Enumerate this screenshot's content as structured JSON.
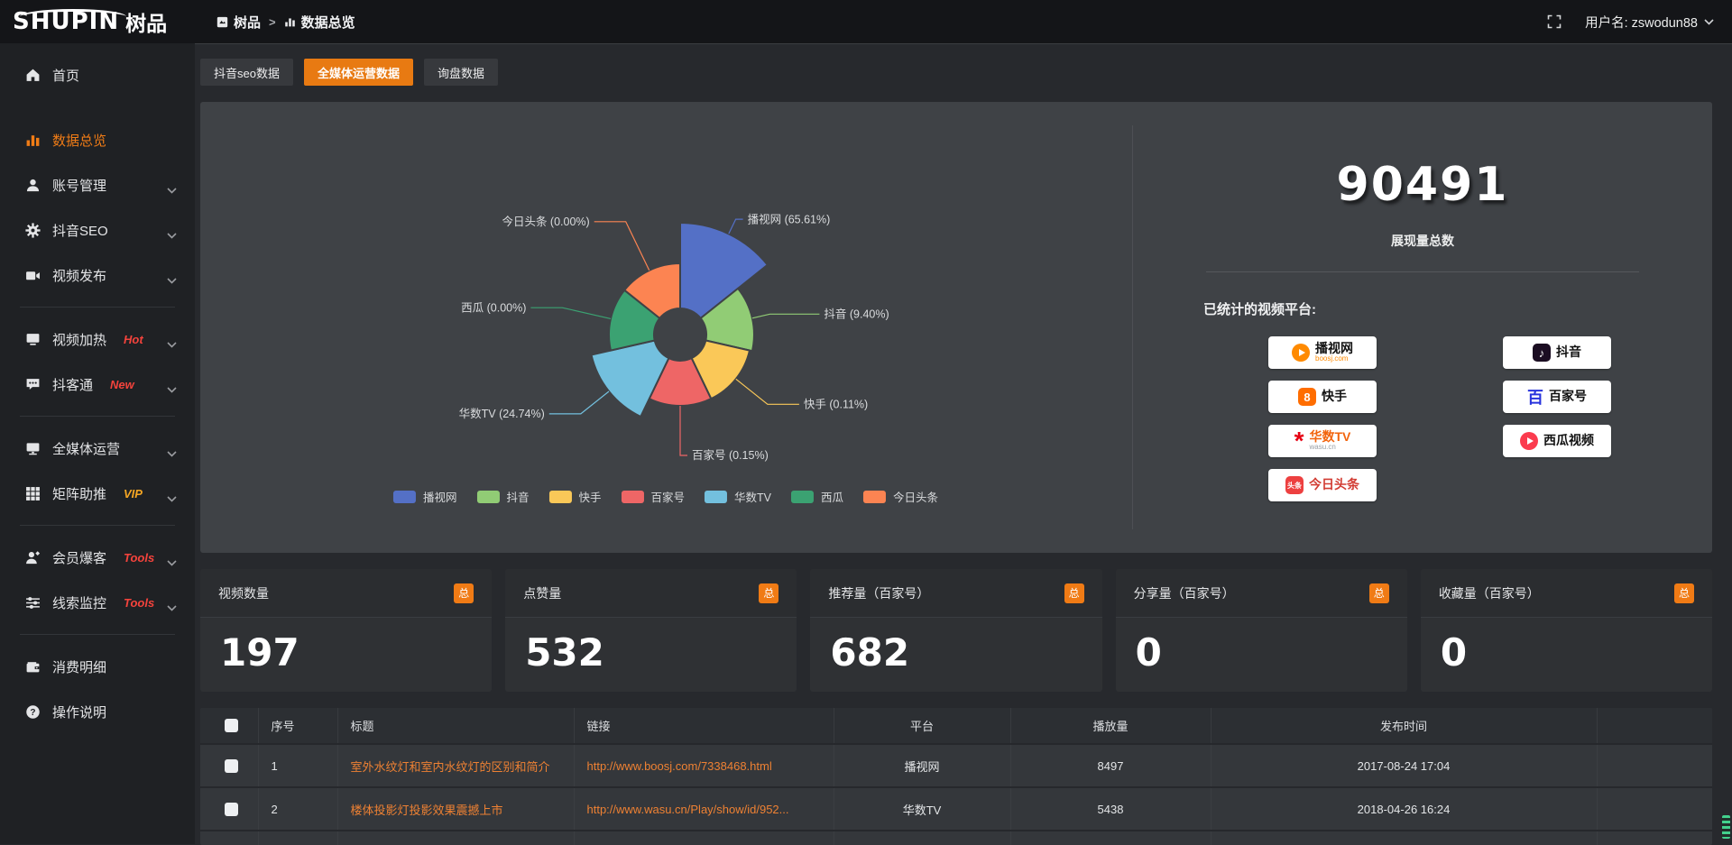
{
  "header": {
    "brand_en": "SHUPIN",
    "brand_cn": "树品",
    "breadcrumb": [
      {
        "label": "树品"
      },
      {
        "label": "数据总览"
      }
    ],
    "breadcrumb_separator": ">",
    "username": "用户名: zswodun88"
  },
  "sidebar": {
    "items": [
      {
        "key": "home",
        "icon": "home",
        "label": "首页",
        "gap_after": true
      },
      {
        "key": "data-overview",
        "icon": "bars",
        "label": "数据总览",
        "active": true
      },
      {
        "key": "account-manage",
        "icon": "user",
        "label": "账号管理",
        "chevron": true
      },
      {
        "key": "douyin-seo",
        "icon": "gear",
        "label": "抖音SEO",
        "chevron": true
      },
      {
        "key": "video-publish",
        "icon": "video",
        "label": "视频发布",
        "chevron": true,
        "divider_after": true
      },
      {
        "key": "video-heat",
        "icon": "screen",
        "label": "视频加热",
        "badge": "Hot",
        "badge_color": "#f4433c",
        "chevron": true
      },
      {
        "key": "douketong",
        "icon": "chat",
        "label": "抖客通",
        "badge": "New",
        "badge_color": "#f4433c",
        "chevron": true,
        "divider_after": true
      },
      {
        "key": "all-media",
        "icon": "monitor",
        "label": "全媒体运营",
        "chevron": true
      },
      {
        "key": "matrix-boost",
        "icon": "grid",
        "label": "矩阵助推",
        "badge": "VIP",
        "badge_color": "#f5a623",
        "chevron": true,
        "divider_after": true
      },
      {
        "key": "member-baoke",
        "icon": "user-star",
        "label": "会员爆客",
        "badge": "Tools",
        "badge_color": "#f4433c",
        "chevron": true
      },
      {
        "key": "clue-monitor",
        "icon": "sliders",
        "label": "线索监控",
        "badge": "Tools",
        "badge_color": "#f4433c",
        "chevron": true,
        "divider_after": true
      },
      {
        "key": "consume-detail",
        "icon": "wallet",
        "label": "消费明细"
      },
      {
        "key": "help",
        "icon": "question",
        "label": "操作说明"
      }
    ]
  },
  "tabs": [
    {
      "key": "douyin-seo-data",
      "label": "抖音seo数据"
    },
    {
      "key": "all-media-data",
      "label": "全媒体运营数据",
      "active": true
    },
    {
      "key": "inquiry-data",
      "label": "询盘数据"
    }
  ],
  "chart_data": {
    "type": "pie",
    "variant": "nightingale-rose",
    "title": "",
    "items": [
      {
        "name": "播视网",
        "pct": 65.61,
        "color": "#5470c6"
      },
      {
        "name": "抖音",
        "pct": 9.4,
        "color": "#91cc75"
      },
      {
        "name": "快手",
        "pct": 0.11,
        "color": "#fac858"
      },
      {
        "name": "百家号",
        "pct": 0.15,
        "color": "#ee6666"
      },
      {
        "name": "华数TV",
        "pct": 24.74,
        "color": "#73c0de"
      },
      {
        "name": "西瓜",
        "pct": 0.0,
        "color": "#3ba272"
      },
      {
        "name": "今日头条",
        "pct": 0.0,
        "color": "#fc8452"
      }
    ],
    "label_format": "{name} ({pct}%)",
    "legend": [
      "播视网",
      "抖音",
      "快手",
      "百家号",
      "华数TV",
      "西瓜",
      "今日头条"
    ],
    "legend_position": "bottom",
    "layout": {
      "inner_radius": 29,
      "outer_radius": [
        124,
        82,
        79,
        79,
        101,
        79,
        79
      ],
      "start_angle_deg": 90,
      "clockwise": true,
      "grid": false
    }
  },
  "summary": {
    "total": "90491",
    "total_caption": "展现量总数",
    "platforms_label": "已统计的视频平台:",
    "platforms": [
      {
        "name": "播视网",
        "sub": "boosj.com",
        "sub_color": "#ff8a00",
        "logo": "boosj"
      },
      {
        "name": "抖音",
        "logo": "douyin"
      },
      {
        "name": "快手",
        "logo": "kuaishou"
      },
      {
        "name": "百家号",
        "logo": "baijiahao"
      },
      {
        "name": "华数TV",
        "sub": "wasu.cn",
        "sub_color": "#9aa0a6",
        "logo": "wasu",
        "name_color": "#f2640d"
      },
      {
        "name": "西瓜视频",
        "logo": "xigua"
      },
      {
        "name": "今日头条",
        "logo": "toutiao",
        "name_color": "#d23c33"
      }
    ]
  },
  "stat_cards": [
    {
      "title": "视频数量",
      "badge": "总",
      "value": "197"
    },
    {
      "title": "点赞量",
      "badge": "总",
      "value": "532"
    },
    {
      "title": "推荐量（百家号）",
      "badge": "总",
      "value": "682"
    },
    {
      "title": "分享量（百家号）",
      "badge": "总",
      "value": "0"
    },
    {
      "title": "收藏量（百家号）",
      "badge": "总",
      "value": "0"
    }
  ],
  "table": {
    "headers": [
      "序号",
      "标题",
      "链接",
      "平台",
      "播放量",
      "发布时间"
    ],
    "rows": [
      {
        "no": "1",
        "title": "室外水纹灯和室内水纹灯的区别和简介",
        "link": "http://www.boosj.com/7338468.html",
        "platform": "播视网",
        "plays": "8497",
        "time": "2017-08-24 17:04"
      },
      {
        "no": "2",
        "title": "楼体投影灯投影效果震撼上市",
        "link": "http://www.wasu.cn/Play/show/id/952...",
        "platform": "华数TV",
        "plays": "5438",
        "time": "2018-04-26 16:24"
      },
      {
        "no": "",
        "title": "",
        "link": "",
        "platform": "",
        "plays": "",
        "time": "",
        "partial": true
      }
    ]
  },
  "colors": {
    "accent": "#e87a12",
    "link": "#ee8133",
    "panel": "#3f4246",
    "page": "#27292d",
    "sidebar": "#1f2124",
    "header_bar": "#141518"
  }
}
